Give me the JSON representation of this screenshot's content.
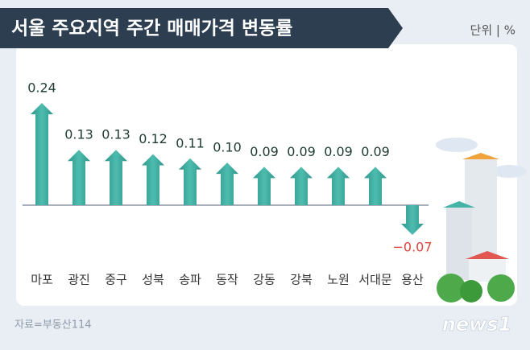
{
  "chart_data": {
    "type": "arrow-bar",
    "title": "서울 주요지역 주간 매매가격 변동률",
    "unit": "단위 | %",
    "categories": [
      "마포",
      "광진",
      "중구",
      "성북",
      "송파",
      "동작",
      "강동",
      "강북",
      "노원",
      "서대문",
      "용산"
    ],
    "values": [
      0.24,
      0.13,
      0.13,
      0.12,
      0.11,
      0.1,
      0.09,
      0.09,
      0.09,
      0.09,
      -0.07
    ],
    "value_labels": [
      "0.24",
      "0.13",
      "0.13",
      "0.12",
      "0.11",
      "0.10",
      "0.09",
      "0.09",
      "0.09",
      "0.09",
      "−0.07"
    ],
    "color": "#3aa99c",
    "positive_label_color": "#1f3b34",
    "negative_label_color": "#e0443e",
    "source": "자료=부동산114",
    "brand": "news1"
  }
}
